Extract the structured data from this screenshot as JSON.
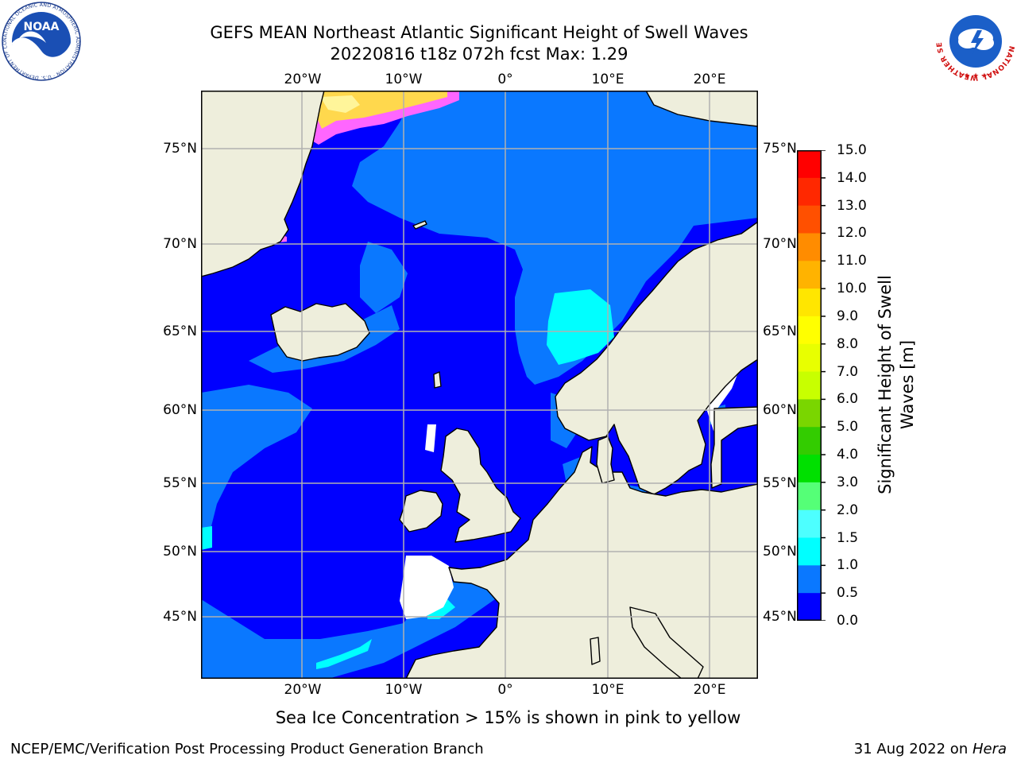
{
  "title": {
    "line1": "GEFS MEAN Northeast Atlantic Significant Height of Swell Waves",
    "line2": "20220816 t18z 072h fcst   Max: 1.29"
  },
  "logos": {
    "noaa_text": "NOAA",
    "noaa_ring": "NATIONAL OCEANIC AND ATMOSPHERIC ADMINISTRATION · U.S. DEPARTMENT OF COMMERCE",
    "nws_ring": "NATIONAL WEATHER SERVICE"
  },
  "map": {
    "lon_labels": [
      "20°W",
      "10°W",
      "0°",
      "10°E",
      "20°E"
    ],
    "lat_labels": [
      "75°N",
      "70°N",
      "65°N",
      "60°N",
      "55°N",
      "50°N",
      "45°N"
    ],
    "colors": {
      "land": "#eeeedc",
      "band_0_05": "#0000ff",
      "band_05_10": "#0a78ff",
      "band_10_15": "#00ffff",
      "band_15_20": "#4dffff",
      "no_data": "#ffffff",
      "ice_pink": "#ff66ff",
      "ice_yellow": "#ffd84d",
      "grid": "#b0b0b0"
    }
  },
  "colorbar": {
    "title": "Significant Height of Swell Waves [m]",
    "ticks": [
      "15.0",
      "14.0",
      "13.0",
      "12.0",
      "11.0",
      "10.0",
      "9.0",
      "8.0",
      "7.0",
      "6.0",
      "5.0",
      "4.0",
      "3.0",
      "2.0",
      "1.5",
      "1.0",
      "0.5",
      "0.0"
    ],
    "bands_bottom_to_top": [
      "#0000ff",
      "#0a78ff",
      "#00ffff",
      "#4dffff",
      "#99ffff",
      "#cfffff",
      "#55ff77",
      "#00e000",
      "#33cc00",
      "#7ad600",
      "#c8ff00",
      "#e8ff00",
      "#ffff00",
      "#ffe600",
      "#ffb300",
      "#ff8c00",
      "#ff5000",
      "#ff2800",
      "#ff0000"
    ]
  },
  "caption": "Sea Ice Concentration > 15% is shown in pink to yellow",
  "footer": {
    "left": "NCEP/EMC/Verification Post Processing Product Generation Branch",
    "right_date": "31 Aug 2022 on ",
    "right_machine": "Hera"
  }
}
